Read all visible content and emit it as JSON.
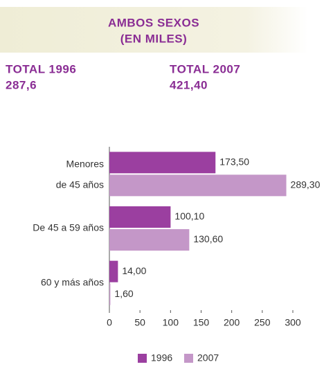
{
  "header": {
    "title_lines": [
      "AMBOS SEXOS",
      "(EN MILES)"
    ],
    "totals": [
      {
        "label": "TOTAL 1996",
        "value": "287,6"
      },
      {
        "label": "TOTAL 2007",
        "value": "421,40"
      }
    ]
  },
  "chart_data": {
    "type": "hbar",
    "categories": [
      "Menores de 45 años",
      "De 45 a 59 años",
      "60 y más años"
    ],
    "series": [
      {
        "name": "1996",
        "color": "#9b3fa0",
        "values": [
          173.5,
          100.1,
          14.0
        ],
        "value_labels": [
          "173,50",
          "100,10",
          "14,00"
        ]
      },
      {
        "name": "2007",
        "color": "#c497c8",
        "values": [
          289.3,
          130.6,
          1.6
        ],
        "value_labels": [
          "289,30",
          "130,60",
          "1,60"
        ]
      }
    ],
    "xlim": [
      0,
      300
    ],
    "xticks": [
      0,
      50,
      100,
      150,
      200,
      250,
      300
    ],
    "legend": "bottom"
  }
}
